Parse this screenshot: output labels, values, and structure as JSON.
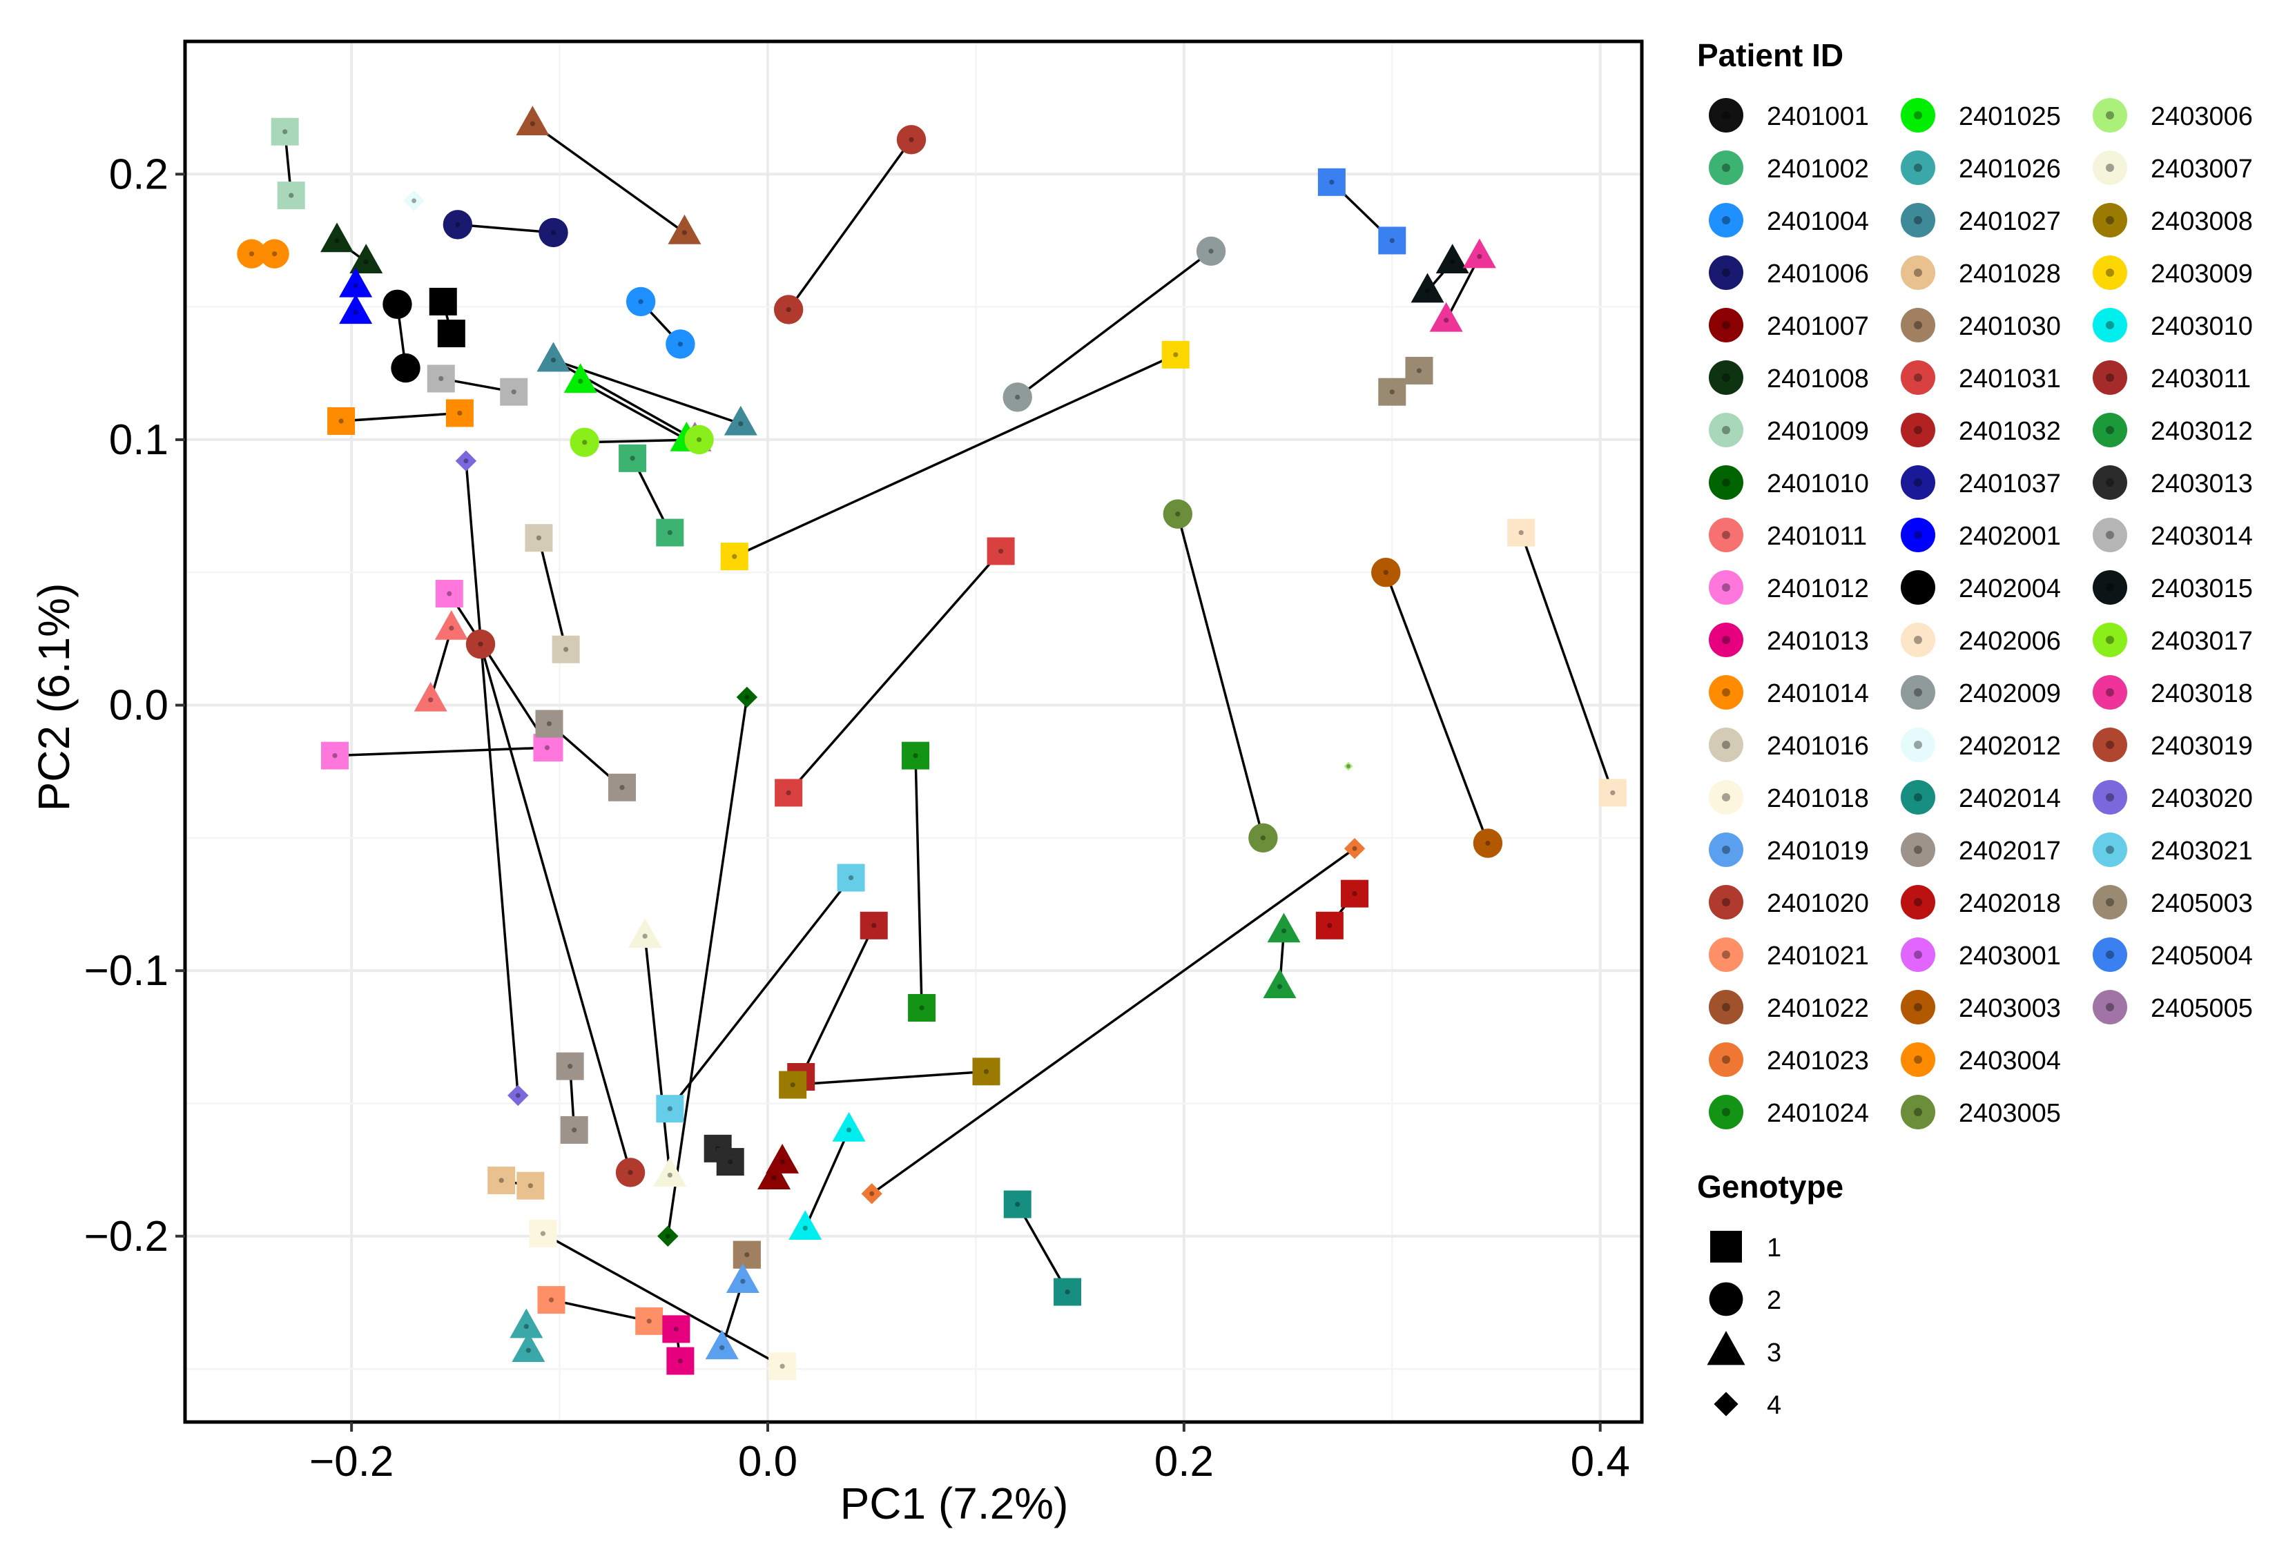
{
  "chart_data": {
    "type": "scatter",
    "title": "",
    "xlabel": "PC1 (7.2%)",
    "ylabel": "PC2 (6.1%)",
    "xlim": [
      -0.28,
      0.42
    ],
    "ylim": [
      -0.27,
      0.25
    ],
    "xticks": [
      -0.2,
      0.0,
      0.2,
      0.4
    ],
    "xtick_labels": [
      "−0.2",
      "0.0",
      "0.2",
      "0.4"
    ],
    "yticks": [
      -0.2,
      -0.1,
      0.0,
      0.1,
      0.2
    ],
    "ytick_labels": [
      "−0.2",
      "−0.1",
      "0.0",
      "0.1",
      "0.2"
    ],
    "grid": true,
    "legend_position": "right",
    "legend": {
      "patient_title": "Patient ID",
      "genotype_title": "Genotype",
      "patients": [
        {
          "id": "2401001",
          "color": "#111111"
        },
        {
          "id": "2401002",
          "color": "#3cb371"
        },
        {
          "id": "2401004",
          "color": "#1e90ff"
        },
        {
          "id": "2401006",
          "color": "#191970"
        },
        {
          "id": "2401007",
          "color": "#8b0000"
        },
        {
          "id": "2401008",
          "color": "#0d3311"
        },
        {
          "id": "2401009",
          "color": "#a8d8b9"
        },
        {
          "id": "2401010",
          "color": "#006400"
        },
        {
          "id": "2401011",
          "color": "#f87171"
        },
        {
          "id": "2401012",
          "color": "#ff77dd"
        },
        {
          "id": "2401013",
          "color": "#e6007e"
        },
        {
          "id": "2401014",
          "color": "#ff8c00"
        },
        {
          "id": "2401016",
          "color": "#d4cbb7"
        },
        {
          "id": "2401018",
          "color": "#fdf6de"
        },
        {
          "id": "2401019",
          "color": "#5aa0ee"
        },
        {
          "id": "2401020",
          "color": "#b03a2e"
        },
        {
          "id": "2401021",
          "color": "#ff8f66"
        },
        {
          "id": "2401022",
          "color": "#a0522d"
        },
        {
          "id": "2401023",
          "color": "#ee7733"
        },
        {
          "id": "2401024",
          "color": "#149414"
        },
        {
          "id": "2401025",
          "color": "#00ee00"
        },
        {
          "id": "2401026",
          "color": "#3aa8a8"
        },
        {
          "id": "2401027",
          "color": "#3f8a99"
        },
        {
          "id": "2401028",
          "color": "#e8c18e"
        },
        {
          "id": "2401030",
          "color": "#a08060"
        },
        {
          "id": "2401031",
          "color": "#d94141"
        },
        {
          "id": "2401032",
          "color": "#b22222"
        },
        {
          "id": "2401037",
          "color": "#1a1a99"
        },
        {
          "id": "2402001",
          "color": "#0000ff"
        },
        {
          "id": "2402004",
          "color": "#000000"
        },
        {
          "id": "2402006",
          "color": "#fde5c8"
        },
        {
          "id": "2402009",
          "color": "#8f9a9a"
        },
        {
          "id": "2402012",
          "color": "#e6fcfc"
        },
        {
          "id": "2402014",
          "color": "#168f80"
        },
        {
          "id": "2402017",
          "color": "#9e938a"
        },
        {
          "id": "2402018",
          "color": "#bb1111"
        },
        {
          "id": "2403001",
          "color": "#e066ff"
        },
        {
          "id": "2403003",
          "color": "#b25900"
        },
        {
          "id": "2403004",
          "color": "#ff8c00"
        },
        {
          "id": "2403005",
          "color": "#6b8e3a"
        },
        {
          "id": "2403006",
          "color": "#aaf07a"
        },
        {
          "id": "2403007",
          "color": "#f5f5dc"
        },
        {
          "id": "2403008",
          "color": "#9a7b00"
        },
        {
          "id": "2403009",
          "color": "#ffd700"
        },
        {
          "id": "2403010",
          "color": "#00eeee"
        },
        {
          "id": "2403011",
          "color": "#a52a2a"
        },
        {
          "id": "2403012",
          "color": "#1c9a3a"
        },
        {
          "id": "2403013",
          "color": "#2b2b2b"
        },
        {
          "id": "2403014",
          "color": "#b5b5b5"
        },
        {
          "id": "2403015",
          "color": "#0b1515"
        },
        {
          "id": "2403017",
          "color": "#8aee1a"
        },
        {
          "id": "2403018",
          "color": "#ee3399"
        },
        {
          "id": "2403019",
          "color": "#b04530"
        },
        {
          "id": "2403020",
          "color": "#7b68dd"
        },
        {
          "id": "2403021",
          "color": "#66cde8"
        },
        {
          "id": "2405003",
          "color": "#9a8a72"
        },
        {
          "id": "2405004",
          "color": "#3a80f0"
        },
        {
          "id": "2405005",
          "color": "#a075a5"
        }
      ],
      "genotypes": [
        {
          "label": "1",
          "shape": "square"
        },
        {
          "label": "2",
          "shape": "circle"
        },
        {
          "label": "3",
          "shape": "triangle"
        },
        {
          "label": "4",
          "shape": "diamond"
        }
      ]
    },
    "pairs": [
      {
        "patient": "2401009",
        "genotype": 1,
        "points": [
          [
            -0.232,
            0.216
          ],
          [
            -0.229,
            0.192
          ]
        ]
      },
      {
        "patient": "2401014",
        "genotype": 2,
        "points": [
          [
            -0.248,
            0.17
          ],
          [
            -0.237,
            0.17
          ]
        ]
      },
      {
        "patient": "2401022",
        "genotype": 3,
        "points": [
          [
            -0.113,
            0.219
          ],
          [
            -0.04,
            0.178
          ]
        ]
      },
      {
        "patient": "2401020",
        "genotype": 2,
        "points": [
          [
            0.069,
            0.213
          ],
          [
            0.01,
            0.149
          ]
        ]
      },
      {
        "patient": "2401008",
        "genotype": 3,
        "points": [
          [
            -0.207,
            0.175
          ],
          [
            -0.193,
            0.167
          ]
        ]
      },
      {
        "patient": "2402001",
        "genotype": 3,
        "points": [
          [
            -0.198,
            0.158
          ],
          [
            -0.198,
            0.148
          ]
        ]
      },
      {
        "patient": "2402004",
        "genotype": 1,
        "points": [
          [
            -0.156,
            0.152
          ],
          [
            -0.152,
            0.14
          ]
        ]
      },
      {
        "patient": "2402004",
        "genotype": 2,
        "points": [
          [
            -0.178,
            0.151
          ],
          [
            -0.174,
            0.127
          ]
        ]
      },
      {
        "patient": "2401006",
        "genotype": 2,
        "points": [
          [
            -0.149,
            0.181
          ],
          [
            -0.103,
            0.178
          ]
        ]
      },
      {
        "patient": "2401004",
        "genotype": 2,
        "points": [
          [
            -0.061,
            0.152
          ],
          [
            -0.042,
            0.136
          ]
        ]
      },
      {
        "patient": "2402009",
        "genotype": 2,
        "points": [
          [
            0.213,
            0.171
          ],
          [
            0.12,
            0.116
          ]
        ]
      },
      {
        "patient": "2403009",
        "genotype": 1,
        "points": [
          [
            0.196,
            0.132
          ],
          [
            -0.016,
            0.056
          ]
        ]
      },
      {
        "patient": "2405004",
        "genotype": 1,
        "points": [
          [
            0.271,
            0.197
          ],
          [
            0.3,
            0.175
          ]
        ]
      },
      {
        "patient": "2403015",
        "genotype": 3,
        "points": [
          [
            0.329,
            0.167
          ],
          [
            0.317,
            0.156
          ]
        ]
      },
      {
        "patient": "2403018",
        "genotype": 3,
        "points": [
          [
            0.342,
            0.169
          ],
          [
            0.326,
            0.145
          ]
        ]
      },
      {
        "patient": "2405003",
        "genotype": 1,
        "points": [
          [
            0.313,
            0.126
          ],
          [
            0.3,
            0.118
          ]
        ]
      },
      {
        "patient": "2403014",
        "genotype": 1,
        "points": [
          [
            -0.157,
            0.123
          ],
          [
            -0.122,
            0.118
          ]
        ]
      },
      {
        "patient": "2403004",
        "genotype": 1,
        "points": [
          [
            -0.205,
            0.107
          ],
          [
            -0.148,
            0.11
          ]
        ]
      },
      {
        "patient": "2405005",
        "genotype": 3,
        "points": [
          [
            -0.103,
            0.13
          ],
          [
            -0.035,
            0.1
          ]
        ]
      },
      {
        "patient": "2401025",
        "genotype": 3,
        "points": [
          [
            -0.09,
            0.122
          ],
          [
            -0.039,
            0.1
          ]
        ]
      },
      {
        "patient": "2401027",
        "genotype": 3,
        "points": [
          [
            -0.103,
            0.13
          ],
          [
            -0.013,
            0.106
          ]
        ]
      },
      {
        "patient": "2403017",
        "genotype": 2,
        "points": [
          [
            -0.088,
            0.099
          ],
          [
            -0.033,
            0.1
          ]
        ]
      },
      {
        "patient": "2401002",
        "genotype": 1,
        "points": [
          [
            -0.065,
            0.093
          ],
          [
            -0.047,
            0.065
          ]
        ]
      },
      {
        "patient": "2403020",
        "genotype": 4,
        "points": [
          [
            -0.145,
            0.092
          ],
          [
            -0.12,
            -0.147
          ]
        ]
      },
      {
        "patient": "2401016",
        "genotype": 1,
        "points": [
          [
            -0.11,
            0.063
          ],
          [
            -0.097,
            0.021
          ]
        ]
      },
      {
        "patient": "2401031",
        "genotype": 1,
        "points": [
          [
            0.112,
            0.058
          ],
          [
            0.01,
            -0.033
          ]
        ]
      },
      {
        "patient": "2403005",
        "genotype": 2,
        "points": [
          [
            0.197,
            0.072
          ],
          [
            0.238,
            -0.05
          ]
        ]
      },
      {
        "patient": "2403003",
        "genotype": 2,
        "points": [
          [
            0.297,
            0.05
          ],
          [
            0.346,
            -0.052
          ]
        ]
      },
      {
        "patient": "2402006",
        "genotype": 1,
        "points": [
          [
            0.362,
            0.065
          ],
          [
            0.406,
            -0.033
          ]
        ]
      },
      {
        "patient": "2401012",
        "genotype": 1,
        "points": [
          [
            -0.153,
            0.042
          ],
          [
            -0.105,
            -0.016
          ]
        ]
      },
      {
        "patient": "2401011",
        "genotype": 3,
        "points": [
          [
            -0.152,
            0.029
          ],
          [
            -0.162,
            0.002
          ]
        ]
      },
      {
        "patient": "2401020",
        "genotype": 2,
        "points": [
          [
            -0.138,
            0.023
          ],
          [
            -0.066,
            -0.176
          ]
        ]
      },
      {
        "patient": "2401012",
        "genotype": 1,
        "points": [
          [
            -0.208,
            -0.019
          ],
          [
            -0.106,
            -0.016
          ]
        ]
      },
      {
        "patient": "2402017",
        "genotype": 1,
        "points": [
          [
            -0.105,
            -0.007
          ],
          [
            -0.07,
            -0.031
          ]
        ]
      },
      {
        "patient": "2401010",
        "genotype": 4,
        "points": [
          [
            -0.01,
            0.003
          ],
          [
            -0.048,
            -0.2
          ]
        ]
      },
      {
        "patient": "2401024",
        "genotype": 1,
        "points": [
          [
            0.071,
            -0.019
          ],
          [
            0.074,
            -0.114
          ]
        ]
      },
      {
        "patient": "2403021",
        "genotype": 1,
        "points": [
          [
            0.04,
            -0.065
          ],
          [
            -0.047,
            -0.152
          ]
        ]
      },
      {
        "patient": "2401032",
        "genotype": 1,
        "points": [
          [
            0.051,
            -0.083
          ],
          [
            0.016,
            -0.14
          ]
        ]
      },
      {
        "patient": "2403007",
        "genotype": 3,
        "points": [
          [
            -0.059,
            -0.087
          ],
          [
            -0.047,
            -0.177
          ]
        ]
      },
      {
        "patient": "2403008",
        "genotype": 1,
        "points": [
          [
            0.105,
            -0.138
          ],
          [
            0.012,
            -0.143
          ]
        ]
      },
      {
        "patient": "2403010",
        "genotype": 3,
        "points": [
          [
            0.039,
            -0.16
          ],
          [
            0.018,
            -0.197
          ]
        ]
      },
      {
        "patient": "2401007",
        "genotype": 3,
        "points": [
          [
            0.007,
            -0.172
          ],
          [
            0.003,
            -0.178
          ]
        ]
      },
      {
        "patient": "2403013",
        "genotype": 1,
        "points": [
          [
            -0.024,
            -0.167
          ],
          [
            -0.018,
            -0.172
          ]
        ]
      },
      {
        "patient": "2402018",
        "genotype": 1,
        "points": [
          [
            0.27,
            -0.083
          ],
          [
            0.282,
            -0.071
          ]
        ]
      },
      {
        "patient": "2403012",
        "genotype": 3,
        "points": [
          [
            0.248,
            -0.085
          ],
          [
            0.246,
            -0.106
          ]
        ]
      },
      {
        "patient": "2401023",
        "genotype": 4,
        "points": [
          [
            0.282,
            -0.054
          ],
          [
            0.05,
            -0.184
          ]
        ]
      },
      {
        "patient": "2402017",
        "genotype": 1,
        "points": [
          [
            -0.095,
            -0.136
          ],
          [
            -0.093,
            -0.16
          ]
        ]
      },
      {
        "patient": "2401028",
        "genotype": 1,
        "points": [
          [
            -0.128,
            -0.179
          ],
          [
            -0.114,
            -0.181
          ]
        ]
      },
      {
        "patient": "2401018",
        "genotype": 1,
        "points": [
          [
            -0.108,
            -0.199
          ],
          [
            0.007,
            -0.249
          ]
        ]
      },
      {
        "patient": "2402014",
        "genotype": 1,
        "points": [
          [
            0.12,
            -0.188
          ],
          [
            0.144,
            -0.221
          ]
        ]
      },
      {
        "patient": "2401030",
        "genotype": 1,
        "points": [
          [
            -0.01,
            -0.207
          ],
          [
            -0.01,
            -0.207
          ]
        ]
      },
      {
        "patient": "2401019",
        "genotype": 3,
        "points": [
          [
            -0.012,
            -0.217
          ],
          [
            -0.022,
            -0.242
          ]
        ]
      },
      {
        "patient": "2401021",
        "genotype": 1,
        "points": [
          [
            -0.104,
            -0.224
          ],
          [
            -0.057,
            -0.232
          ]
        ]
      },
      {
        "patient": "2401013",
        "genotype": 1,
        "points": [
          [
            -0.044,
            -0.235
          ],
          [
            -0.042,
            -0.247
          ]
        ]
      },
      {
        "patient": "2401026",
        "genotype": 3,
        "points": [
          [
            -0.116,
            -0.234
          ],
          [
            -0.115,
            -0.243
          ]
        ]
      }
    ],
    "singles": [
      {
        "patient": "2402012",
        "genotype": 4,
        "point": [
          -0.17,
          0.19
        ]
      },
      {
        "patient": "2403006",
        "genotype": 4,
        "point": [
          0.279,
          -0.023
        ]
      }
    ]
  }
}
